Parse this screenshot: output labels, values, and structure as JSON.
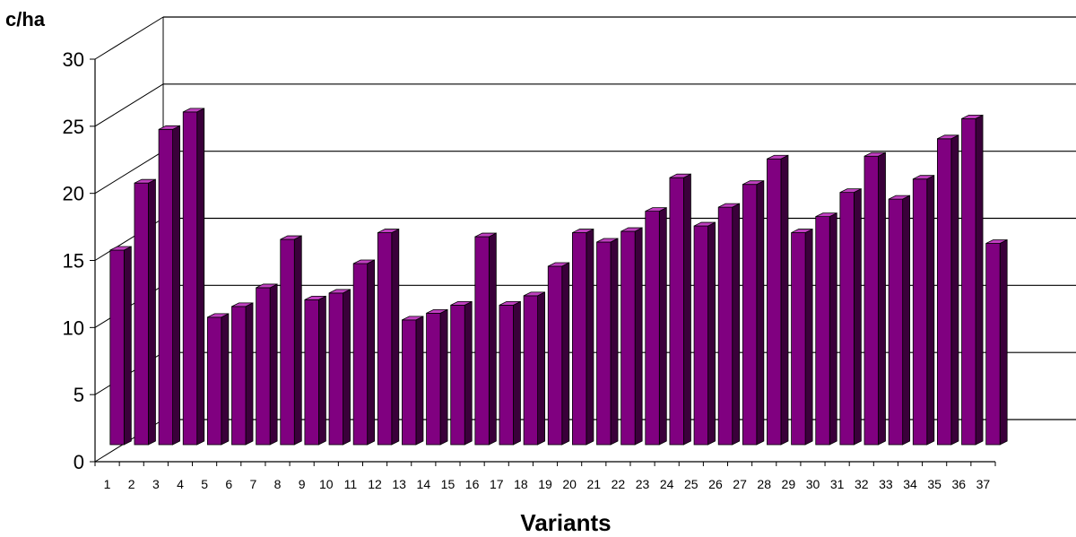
{
  "chart_data": {
    "type": "bar",
    "title": "",
    "ylabel": "c/ha",
    "xlabel": "Variants",
    "ylim": [
      0,
      30
    ],
    "yticks": [
      0,
      5,
      10,
      15,
      20,
      25,
      30
    ],
    "grid": true,
    "categories": [
      "1",
      "2",
      "3",
      "4",
      "5",
      "6",
      "7",
      "8",
      "9",
      "10",
      "11",
      "12",
      "13",
      "14",
      "15",
      "16",
      "17",
      "18",
      "19",
      "20",
      "21",
      "22",
      "23",
      "24",
      "25",
      "26",
      "27",
      "28",
      "29",
      "30",
      "31",
      "32",
      "33",
      "34",
      "35",
      "36",
      "37"
    ],
    "values": [
      15.5,
      20.5,
      24.5,
      25.8,
      10.5,
      11.3,
      12.7,
      16.3,
      11.8,
      12.3,
      14.5,
      16.8,
      10.3,
      10.8,
      11.4,
      16.5,
      11.4,
      12.1,
      14.3,
      16.8,
      16.1,
      16.9,
      18.4,
      20.9,
      17.3,
      18.7,
      20.4,
      22.3,
      16.8,
      18.0,
      19.8,
      22.5,
      19.3,
      20.8,
      23.8,
      25.3,
      16.0
    ],
    "bar_color": "#800080"
  }
}
